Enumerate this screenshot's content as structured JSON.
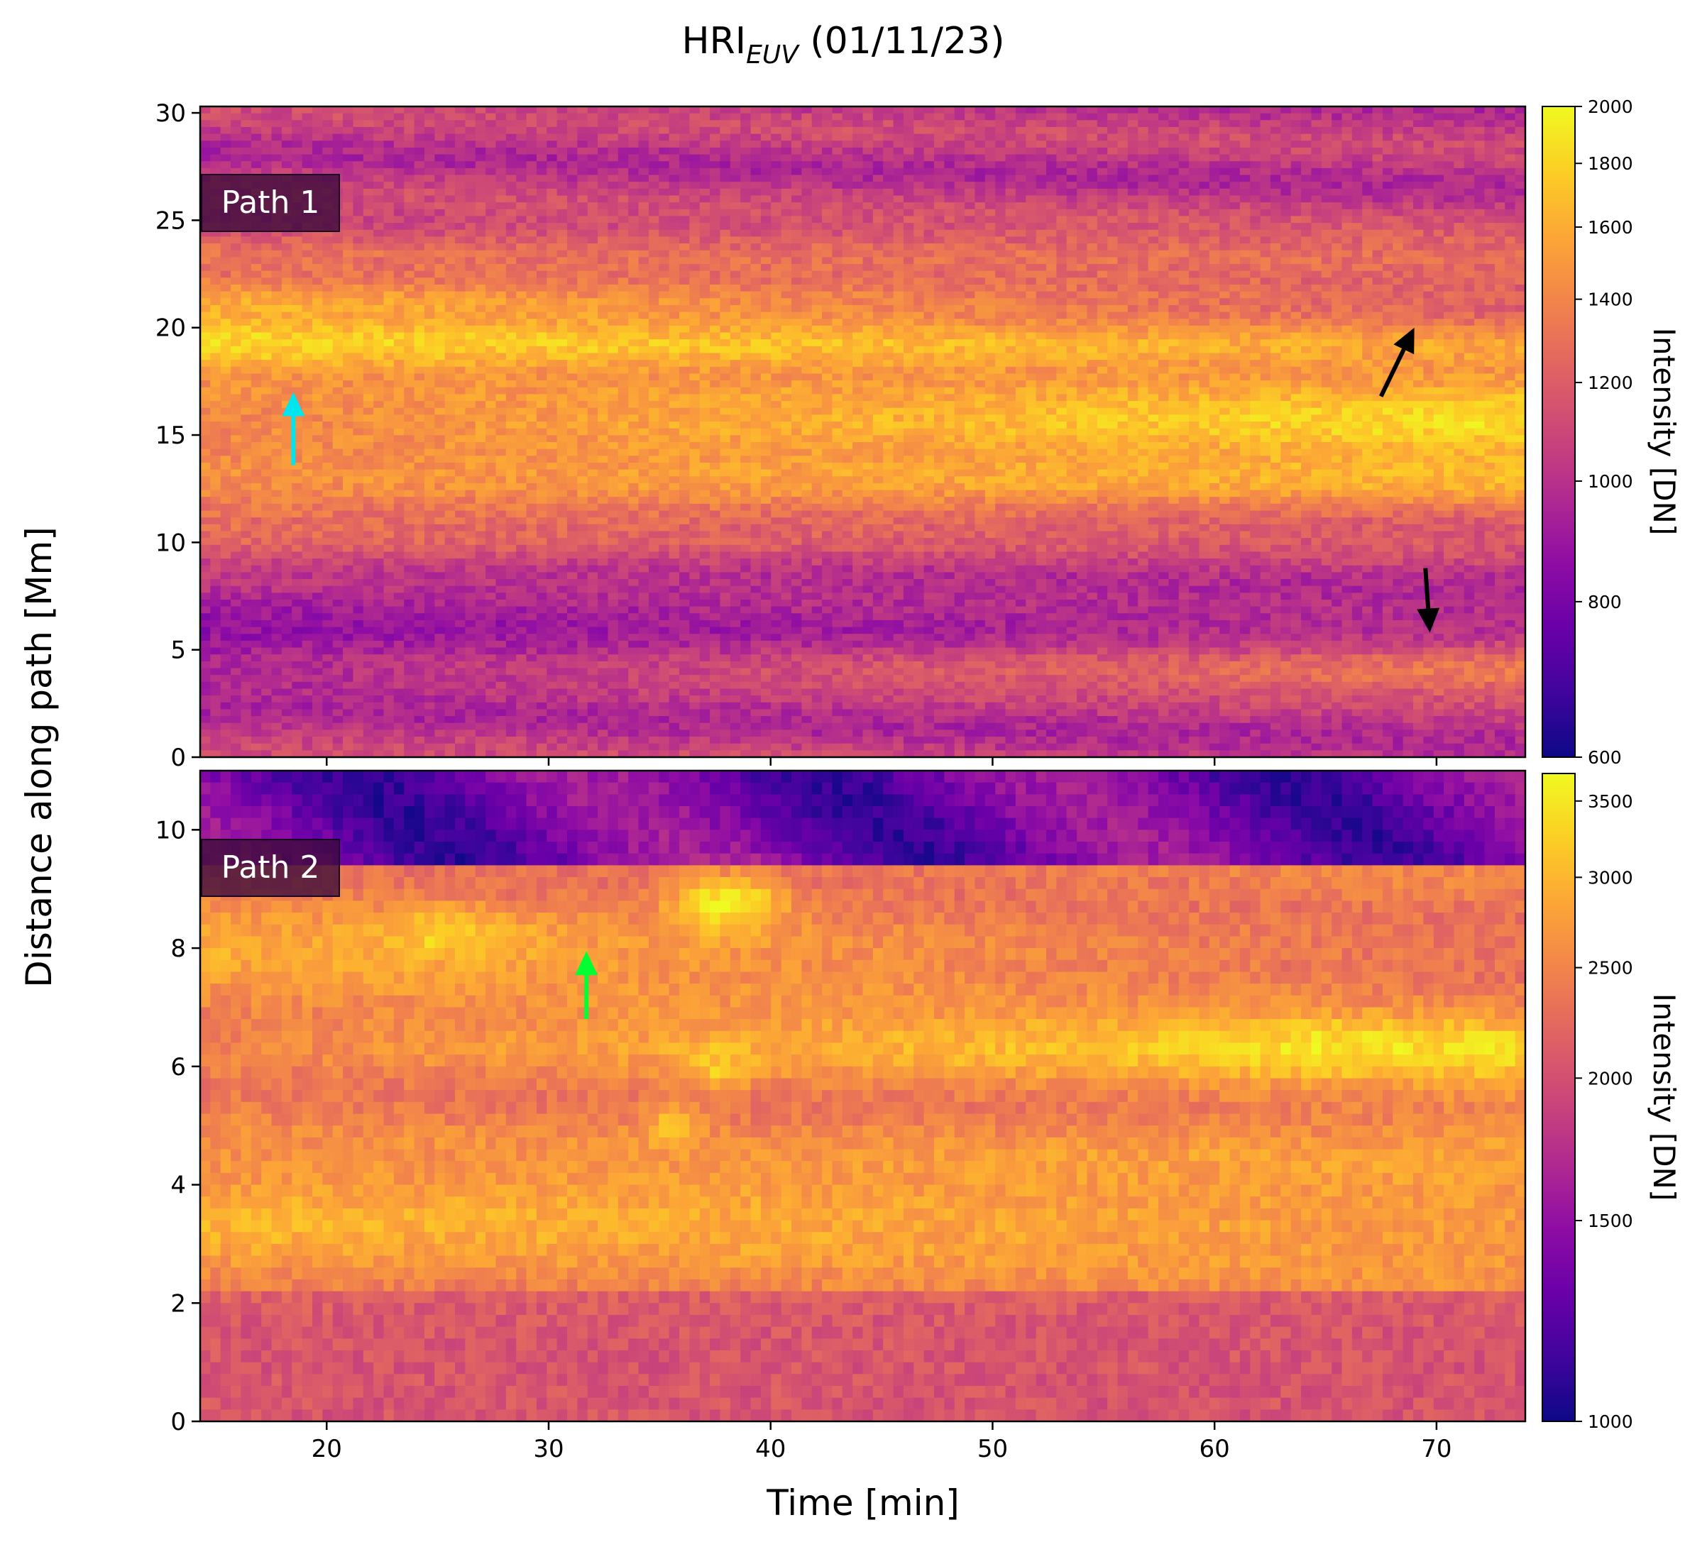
{
  "figure": {
    "title_main": "HRI",
    "title_sub": "EUV",
    "title_tail": " (01/11/23)",
    "shared_ylabel": "Distance along path [Mm]",
    "shared_xlabel": "Time [min]"
  },
  "colormap": "plasma",
  "chart_data": [
    {
      "type": "heatmap",
      "name": "Path 1",
      "panel_label": "Path 1",
      "x_range": [
        14.3,
        74.0
      ],
      "y_range": [
        0,
        30.3
      ],
      "x_ticks": [
        20,
        30,
        40,
        50,
        60,
        70
      ],
      "y_ticks": [
        0,
        5,
        10,
        15,
        20,
        25,
        30
      ],
      "x_tick_labels_shown": false,
      "colorbar": {
        "label": "Intensity [DN]",
        "scale": "log",
        "range": [
          600,
          2000
        ],
        "ticks": [
          600,
          800,
          1000,
          1200,
          1400,
          1600,
          1800,
          2000
        ]
      },
      "bands": [
        {
          "y": 19.3,
          "width": 1.6,
          "start": [
            14.3,
            1950
          ],
          "end": [
            74,
            1650
          ]
        },
        {
          "y": 21.0,
          "width": 1.5,
          "start": [
            14.3,
            1680
          ],
          "end": [
            74,
            1180
          ]
        },
        {
          "y": 23.2,
          "width": 1.6,
          "start": [
            14.3,
            1300
          ],
          "end": [
            74,
            1280
          ]
        },
        {
          "y": 16.8,
          "width": 2.0,
          "start": [
            14.3,
            1500
          ],
          "end": [
            74,
            1500
          ]
        },
        {
          "y": 15.5,
          "width": 1.4,
          "start": [
            14.3,
            1350
          ],
          "end": [
            74,
            1950
          ]
        },
        {
          "y": 13.0,
          "width": 2.5,
          "start": [
            14.3,
            1450
          ],
          "end": [
            74,
            1700
          ]
        },
        {
          "y": 10.5,
          "width": 1.5,
          "start": [
            14.3,
            1300
          ],
          "end": [
            74,
            1150
          ]
        },
        {
          "y": 5.7,
          "width": 2.8,
          "start": [
            14.3,
            840
          ],
          "end": [
            74,
            950
          ]
        },
        {
          "y": 4.0,
          "width": 1.2,
          "start": [
            14.3,
            950
          ],
          "end": [
            74,
            1350
          ]
        }
      ],
      "background": {
        "low": 960,
        "high": 1120
      },
      "annotations": [
        {
          "kind": "arrow",
          "color": "#00e5ee",
          "from": [
            18.5,
            13.6
          ],
          "to": [
            18.5,
            17.0
          ]
        },
        {
          "kind": "arrow",
          "color": "#000000",
          "from": [
            67.5,
            16.8
          ],
          "to": [
            69.0,
            20.0
          ]
        },
        {
          "kind": "arrow",
          "color": "#000000",
          "from": [
            69.5,
            8.8
          ],
          "to": [
            69.7,
            5.8
          ]
        }
      ]
    },
    {
      "type": "heatmap",
      "name": "Path 2",
      "panel_label": "Path 2",
      "x_range": [
        14.3,
        74.0
      ],
      "y_range": [
        0,
        11.0
      ],
      "x_ticks": [
        20,
        30,
        40,
        50,
        60,
        70
      ],
      "x_tick_labels": [
        "20",
        "30",
        "40",
        "50",
        "60",
        "70"
      ],
      "y_ticks": [
        0,
        2,
        4,
        6,
        8,
        10
      ],
      "colorbar": {
        "label": "Intensity [DN]",
        "scale": "log",
        "range": [
          1000,
          3700
        ],
        "ticks": [
          1000,
          1500,
          2000,
          2500,
          3000,
          3500
        ]
      },
      "bands": [
        {
          "y": 3.4,
          "width": 0.9,
          "start": [
            14.3,
            3000
          ],
          "end": [
            74,
            2700
          ]
        },
        {
          "y": 6.3,
          "width": 0.5,
          "start": [
            14.3,
            2500
          ],
          "end": [
            74,
            3400
          ]
        },
        {
          "y": 8.0,
          "width": 0.6,
          "start": [
            14.3,
            2900
          ],
          "end": [
            74,
            2300
          ]
        },
        {
          "y": 4.4,
          "width": 0.6,
          "start": [
            14.3,
            2600
          ],
          "end": [
            74,
            2850
          ]
        }
      ],
      "blobs": [
        {
          "x": 38.0,
          "y": 8.75,
          "rx": 2.3,
          "ry": 0.45,
          "value": 3700
        },
        {
          "x": 25.5,
          "y": 8.2,
          "rx": 3.0,
          "ry": 0.4,
          "value": 3300
        },
        {
          "x": 65.5,
          "y": 6.3,
          "rx": 5.0,
          "ry": 0.35,
          "value": 3450
        },
        {
          "x": 37.5,
          "y": 6.0,
          "rx": 1.5,
          "ry": 0.4,
          "value": 3200
        },
        {
          "x": 35.5,
          "y": 5.0,
          "rx": 1.3,
          "ry": 0.35,
          "value": 3100
        }
      ],
      "background": {
        "low": 2300,
        "high": 2650
      },
      "dark_top": {
        "y_start": 9.4,
        "value": 1350
      },
      "dark_bottom": {
        "y_end": 2.3,
        "value": 2050
      },
      "annotations": [
        {
          "kind": "arrow",
          "color": "#00ff33",
          "from": [
            31.7,
            6.8
          ],
          "to": [
            31.7,
            7.95
          ]
        }
      ]
    }
  ]
}
